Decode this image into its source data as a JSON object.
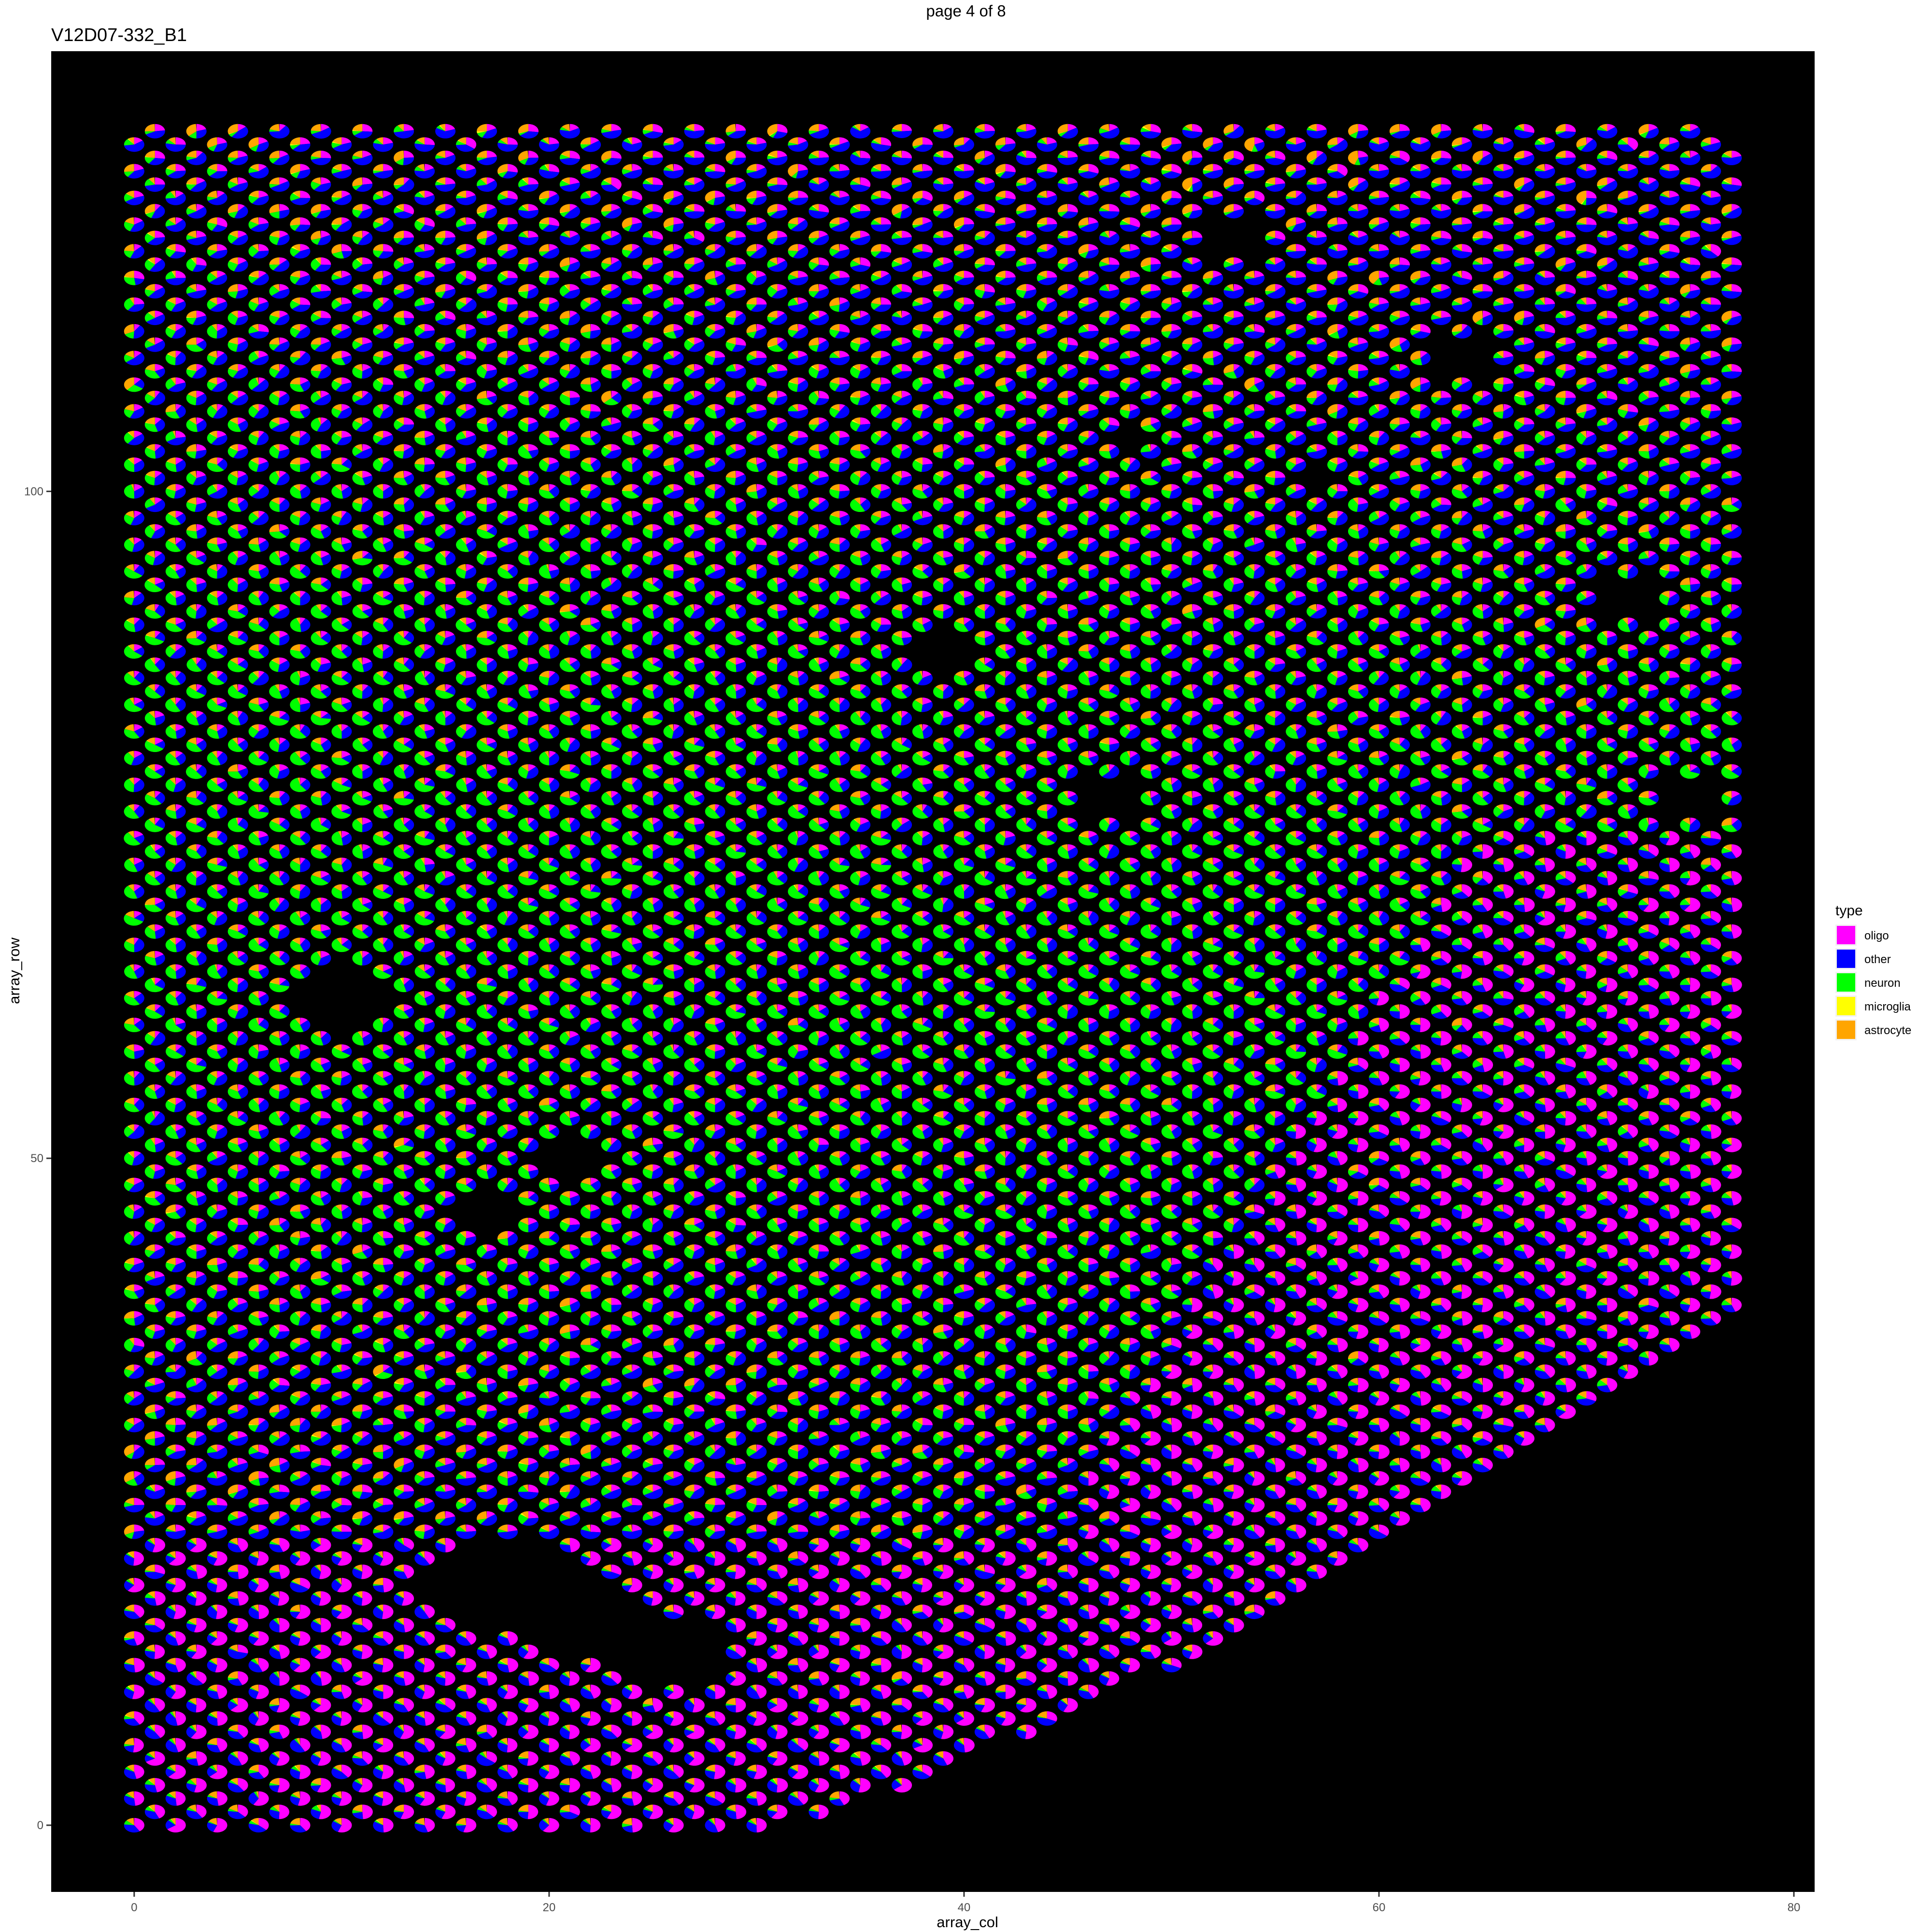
{
  "page": {
    "header": "page 4 of 8"
  },
  "chart_data": {
    "type": "scatter",
    "mark": "pie",
    "title": "V12D07-332_B1",
    "xlabel": "array_col",
    "ylabel": "array_row",
    "xlim": [
      -4,
      81
    ],
    "ylim": [
      -5,
      133
    ],
    "x_ticks": [
      0,
      20,
      40,
      60,
      80
    ],
    "y_ticks": [
      0,
      50,
      100
    ],
    "x_tick_labels": [
      "0",
      "20",
      "40",
      "60",
      "80"
    ],
    "y_tick_labels": [
      "0",
      "50",
      "100"
    ],
    "panel_background": "#000000",
    "grid": false,
    "legend": {
      "title": "type",
      "position": "right",
      "entries": [
        {
          "label": "oligo",
          "color": "#FF00FF"
        },
        {
          "label": "other",
          "color": "#0000FF"
        },
        {
          "label": "neuron",
          "color": "#00FF00"
        },
        {
          "label": "microglia",
          "color": "#FFFF00"
        },
        {
          "label": "astrocyte",
          "color": "#FFA500"
        }
      ]
    },
    "spot_grid": {
      "array_col_range": [
        0,
        77
      ],
      "array_row_range": [
        0,
        127
      ],
      "layout": "hexagonal"
    }
  }
}
